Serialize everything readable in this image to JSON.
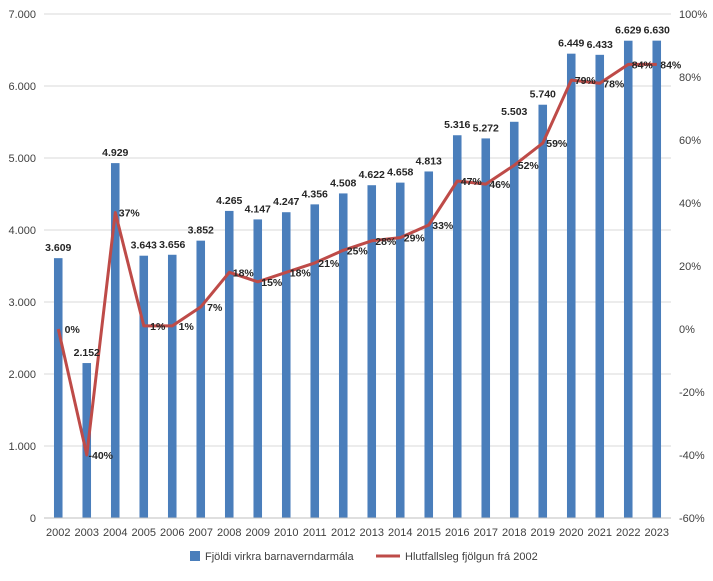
{
  "chart_data": {
    "type": "bar",
    "categories": [
      "2002",
      "2003",
      "2004",
      "2005",
      "2006",
      "2007",
      "2008",
      "2009",
      "2010",
      "2011",
      "2012",
      "2013",
      "2014",
      "2015",
      "2016",
      "2017",
      "2018",
      "2019",
      "2020",
      "2021",
      "2022",
      "2023"
    ],
    "series": [
      {
        "name": "Fjöldi virkra barnaverndarmála",
        "type": "bar",
        "axis": "left",
        "color": "#4a7ebb",
        "values": [
          3609,
          2152,
          4929,
          3643,
          3656,
          3852,
          4265,
          4147,
          4247,
          4356,
          4508,
          4622,
          4658,
          4813,
          5316,
          5272,
          5503,
          5740,
          6449,
          6433,
          6629,
          6630
        ],
        "labels": [
          "3.609",
          "2.152",
          "4.929",
          "3.643",
          "3.656",
          "3.852",
          "4.265",
          "4.147",
          "4.247",
          "4.356",
          "4.508",
          "4.622",
          "4.658",
          "4.813",
          "5.316",
          "5.272",
          "5.503",
          "5.740",
          "6.449",
          "6.433",
          "6.629",
          "6.630"
        ]
      },
      {
        "name": "Hlutfallsleg fjölgun frá 2002",
        "type": "line",
        "axis": "right",
        "color": "#be4b48",
        "values": [
          0,
          -40,
          37,
          1,
          1,
          7,
          18,
          15,
          18,
          21,
          25,
          28,
          29,
          33,
          47,
          46,
          52,
          59,
          79,
          78,
          84,
          84
        ],
        "labels": [
          "0%",
          "-40%",
          "37%",
          "1%",
          "1%",
          "7%",
          "18%",
          "15%",
          "18%",
          "21%",
          "25%",
          "28%",
          "29%",
          "33%",
          "47%",
          "46%",
          "52%",
          "59%",
          "79%",
          "78%",
          "84%",
          "84%"
        ]
      }
    ],
    "y_left": {
      "min": 0,
      "max": 7000,
      "ticks": [
        0,
        1000,
        2000,
        3000,
        4000,
        5000,
        6000,
        7000
      ],
      "tick_labels": [
        "0",
        "1.000",
        "2.000",
        "3.000",
        "4.000",
        "5.000",
        "6.000",
        "7.000"
      ]
    },
    "y_right": {
      "min": -60,
      "max": 100,
      "ticks": [
        -60,
        -40,
        -20,
        0,
        20,
        40,
        60,
        80,
        100
      ],
      "tick_labels": [
        "-60%",
        "-40%",
        "-20%",
        "0%",
        "20%",
        "40%",
        "60%",
        "80%",
        "100%"
      ]
    },
    "legend": [
      "Fjöldi virkra barnaverndarmála",
      "Hlutfallsleg fjölgun frá 2002"
    ],
    "legend_position": "bottom",
    "title": "",
    "xlabel": "",
    "ylabel": ""
  }
}
